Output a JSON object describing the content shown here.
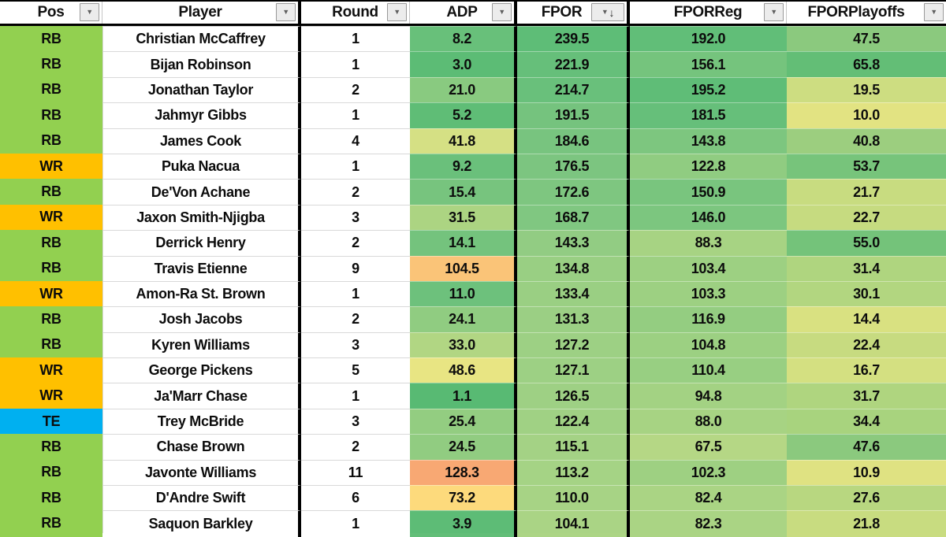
{
  "header": {
    "columns": [
      {
        "label": "Pos"
      },
      {
        "label": "Player"
      },
      {
        "label": "Round"
      },
      {
        "label": "ADP"
      },
      {
        "label": "FPOR",
        "sorted": "descending"
      },
      {
        "label": "FPORReg"
      },
      {
        "label": "FPORPlayoffs"
      }
    ]
  },
  "icons": {
    "filter_dropdown": "▼",
    "sort_descending_arrow": "↓"
  },
  "pos_colors": {
    "RB": "#92D050",
    "WR": "#FFC000",
    "TE": "#00B0F0"
  },
  "rows": [
    {
      "pos": "RB",
      "player": "Christian McCaffrey",
      "round": "1",
      "adp": "8.2",
      "fpor": "239.5",
      "fporreg": "192.0",
      "fporplayoffs": "47.5",
      "colors": {
        "adp": "#68C07A",
        "fpor": "#5EBD77",
        "fporreg": "#61BE78",
        "fporplayoffs": "#8BC97E"
      }
    },
    {
      "pos": "RB",
      "player": "Bijan Robinson",
      "round": "1",
      "adp": "3.0",
      "fpor": "221.9",
      "fporreg": "156.1",
      "fporplayoffs": "65.8",
      "colors": {
        "adp": "#5CBC75",
        "fpor": "#66BF7A",
        "fporreg": "#75C47D",
        "fporplayoffs": "#63BE76"
      }
    },
    {
      "pos": "RB",
      "player": "Jonathan Taylor",
      "round": "2",
      "adp": "21.0",
      "fpor": "214.7",
      "fporreg": "195.2",
      "fporplayoffs": "19.5",
      "colors": {
        "adp": "#89CA80",
        "fpor": "#69C07B",
        "fporreg": "#5FBD77",
        "fporplayoffs": "#CDDD81"
      }
    },
    {
      "pos": "RB",
      "player": "Jahmyr Gibbs",
      "round": "1",
      "adp": "5.2",
      "fpor": "191.5",
      "fporreg": "181.5",
      "fporplayoffs": "10.0",
      "colors": {
        "adp": "#5FBD76",
        "fpor": "#75C37E",
        "fporreg": "#66BF7A",
        "fporplayoffs": "#E2E382"
      }
    },
    {
      "pos": "RB",
      "player": "James Cook",
      "round": "4",
      "adp": "41.8",
      "fpor": "184.6",
      "fporreg": "143.8",
      "fporplayoffs": "40.8",
      "colors": {
        "adp": "#D5E084",
        "fpor": "#78C47F",
        "fporreg": "#7DC67F",
        "fporplayoffs": "#9CCE7F"
      }
    },
    {
      "pos": "WR",
      "player": "Puka Nacua",
      "round": "1",
      "adp": "9.2",
      "fpor": "176.5",
      "fporreg": "122.8",
      "fporplayoffs": "53.7",
      "colors": {
        "adp": "#6AC07B",
        "fpor": "#7CC580",
        "fporreg": "#90CC81",
        "fporplayoffs": "#77C47B"
      }
    },
    {
      "pos": "RB",
      "player": "De'Von Achane",
      "round": "2",
      "adp": "15.4",
      "fpor": "172.6",
      "fporreg": "150.9",
      "fporplayoffs": "21.7",
      "colors": {
        "adp": "#77C47E",
        "fpor": "#7EC680",
        "fporreg": "#79C57E",
        "fporplayoffs": "#C8DC80"
      }
    },
    {
      "pos": "WR",
      "player": "Jaxon Smith-Njigba",
      "round": "3",
      "adp": "31.5",
      "fpor": "168.7",
      "fporreg": "146.0",
      "fporplayoffs": "22.7",
      "colors": {
        "adp": "#ACD482",
        "fpor": "#80C781",
        "fporreg": "#7CC67F",
        "fporplayoffs": "#C6DB80"
      }
    },
    {
      "pos": "RB",
      "player": "Derrick Henry",
      "round": "2",
      "adp": "14.1",
      "fpor": "143.3",
      "fporreg": "88.3",
      "fporplayoffs": "55.0",
      "colors": {
        "adp": "#74C37D",
        "fpor": "#92CC83",
        "fporreg": "#A7D383",
        "fporplayoffs": "#74C37A"
      }
    },
    {
      "pos": "RB",
      "player": "Travis Etienne",
      "round": "9",
      "adp": "104.5",
      "fpor": "134.8",
      "fporreg": "103.4",
      "fporplayoffs": "31.4",
      "colors": {
        "adp": "#FAC478",
        "fpor": "#99CF83",
        "fporreg": "#9DD082",
        "fporplayoffs": "#AFD57F"
      }
    },
    {
      "pos": "WR",
      "player": "Amon-Ra St. Brown",
      "round": "1",
      "adp": "11.0",
      "fpor": "133.4",
      "fporreg": "103.3",
      "fporplayoffs": "30.1",
      "colors": {
        "adp": "#6DC17C",
        "fpor": "#9ACF83",
        "fporreg": "#9DD082",
        "fporplayoffs": "#B2D680"
      }
    },
    {
      "pos": "RB",
      "player": "Josh Jacobs",
      "round": "2",
      "adp": "24.1",
      "fpor": "131.3",
      "fporreg": "116.9",
      "fporplayoffs": "14.4",
      "colors": {
        "adp": "#90CC81",
        "fpor": "#9BCF84",
        "fporreg": "#94CD81",
        "fporplayoffs": "#D9E181"
      }
    },
    {
      "pos": "RB",
      "player": "Kyren Williams",
      "round": "3",
      "adp": "33.0",
      "fpor": "127.2",
      "fporreg": "104.8",
      "fporplayoffs": "22.4",
      "colors": {
        "adp": "#B1D683",
        "fpor": "#9DD084",
        "fporreg": "#9CD082",
        "fporplayoffs": "#C7DB80"
      }
    },
    {
      "pos": "WR",
      "player": "George Pickens",
      "round": "5",
      "adp": "48.6",
      "fpor": "127.1",
      "fporreg": "110.4",
      "fporplayoffs": "16.7",
      "colors": {
        "adp": "#E8E583",
        "fpor": "#9DD084",
        "fporreg": "#98CF82",
        "fporplayoffs": "#D4E081"
      }
    },
    {
      "pos": "WR",
      "player": "Ja'Marr Chase",
      "round": "1",
      "adp": "1.1",
      "fpor": "126.5",
      "fporreg": "94.8",
      "fporplayoffs": "31.7",
      "colors": {
        "adp": "#58BA73",
        "fpor": "#9ED084",
        "fporreg": "#A3D283",
        "fporplayoffs": "#AFD57F"
      }
    },
    {
      "pos": "TE",
      "player": "Trey McBride",
      "round": "3",
      "adp": "25.4",
      "fpor": "122.4",
      "fporreg": "88.0",
      "fporplayoffs": "34.4",
      "colors": {
        "adp": "#93CD81",
        "fpor": "#A0D184",
        "fporreg": "#A7D383",
        "fporplayoffs": "#A8D37E"
      }
    },
    {
      "pos": "RB",
      "player": "Chase Brown",
      "round": "2",
      "adp": "24.5",
      "fpor": "115.1",
      "fporreg": "67.5",
      "fporplayoffs": "47.6",
      "colors": {
        "adp": "#91CC81",
        "fpor": "#A4D285",
        "fporreg": "#B5D785",
        "fporplayoffs": "#8BC97E"
      }
    },
    {
      "pos": "RB",
      "player": "Javonte Williams",
      "round": "11",
      "adp": "128.3",
      "fpor": "113.2",
      "fporreg": "102.3",
      "fporplayoffs": "10.9",
      "colors": {
        "adp": "#F8A873",
        "fpor": "#A5D385",
        "fporreg": "#9ED082",
        "fporplayoffs": "#DFE282"
      }
    },
    {
      "pos": "RB",
      "player": "D'Andre Swift",
      "round": "6",
      "adp": "73.2",
      "fpor": "110.0",
      "fporreg": "82.4",
      "fporplayoffs": "27.6",
      "colors": {
        "adp": "#FDDA7C",
        "fpor": "#A7D385",
        "fporreg": "#AAD484",
        "fporplayoffs": "#B8D780"
      }
    },
    {
      "pos": "RB",
      "player": "Saquon Barkley",
      "round": "1",
      "adp": "3.9",
      "fpor": "104.1",
      "fporreg": "82.3",
      "fporplayoffs": "21.8",
      "colors": {
        "adp": "#5DBC76",
        "fpor": "#AAD485",
        "fporreg": "#AAD484",
        "fporplayoffs": "#C8DC80"
      }
    }
  ],
  "bottom_sliver_colors": [
    "#92D050",
    "#FFFFFF",
    "#FFFFFF",
    "#62BE78",
    "#ACD585",
    "#ABD484",
    "#C9DC80"
  ]
}
